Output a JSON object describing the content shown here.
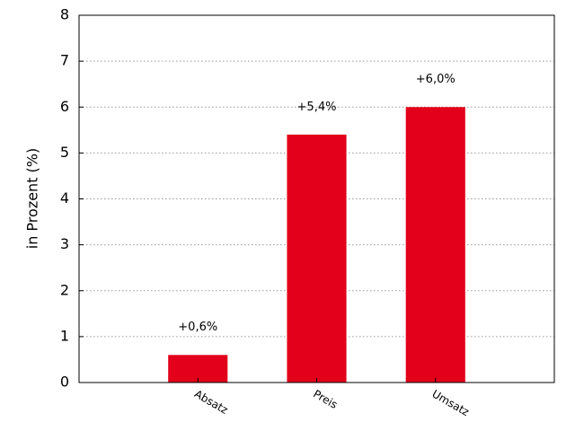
{
  "chart_data": {
    "type": "bar",
    "categories": [
      "Absatz",
      "Preis",
      "Umsatz"
    ],
    "values": [
      0.6,
      5.4,
      6.0
    ],
    "value_labels": [
      "+0,6%",
      "+5,4%",
      "+6,0%"
    ],
    "color": "#e2001a",
    "y_label": "in Prozent (%)",
    "ylim": [
      0,
      8
    ],
    "yticks": [
      0,
      1,
      2,
      3,
      4,
      5,
      6,
      7,
      8
    ],
    "grid": true
  }
}
